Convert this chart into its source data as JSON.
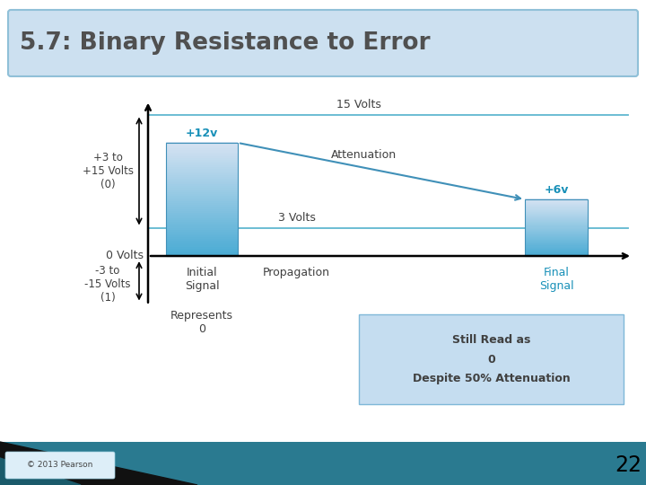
{
  "title": "5.7: Binary Resistance to Error",
  "title_color": "#505050",
  "title_bg": "#cce0f0",
  "title_border": "#90c0d8",
  "bg_color": "#ffffff",
  "bar1_label": "+12v",
  "bar2_label": "+6v",
  "bar_color_light": "#b8e4f4",
  "bar_color_dark": "#4aacd4",
  "bar_border_color": "#4090b8",
  "line_color": "#60b8d0",
  "arrow_color": "#4090b8",
  "attenuation_label": "Attenuation",
  "volts_15_label": "15 Volts",
  "volts_3_label": "3 Volts",
  "left_label_top": "+3 to\n+15 Volts\n(0)",
  "left_label_bottom": "-3 to\n-15 Volts\n(1)",
  "zero_volts_label": "0 Volts",
  "initial_signal_label": "Initial\nSignal",
  "propagation_label": "Propagation",
  "final_signal_label": "Final\nSignal",
  "represents_label": "Represents\n0",
  "still_read_label": "Still Read as\n0\nDespite 50% Attenuation",
  "still_read_bg": "#c5ddf0",
  "still_read_border": "#7fb8d8",
  "copyright_label": "© 2013 Pearson",
  "page_number": "22",
  "text_color": "#404040",
  "cyan_color": "#1890b8",
  "bottom_teal": "#2a7a90",
  "bottom_black": "#111111"
}
